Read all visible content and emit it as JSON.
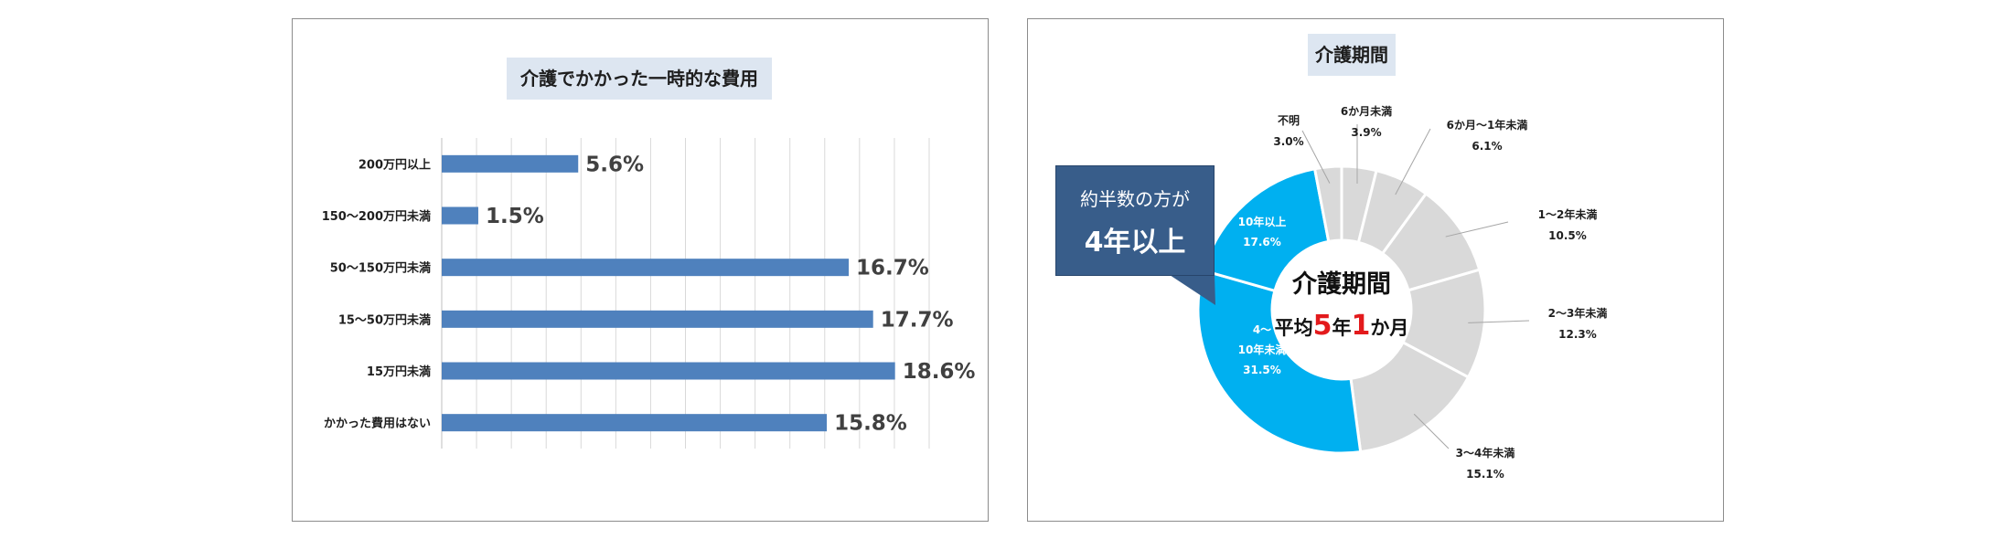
{
  "chart_data": [
    {
      "type": "bar",
      "orientation": "horizontal",
      "title": "介護でかかった一時的な費用",
      "categories": [
        "200万円以上",
        "150～200万円未満",
        "50～150万円未満",
        "15～50万円未満",
        "15万円未満",
        "かかった費用はない"
      ],
      "values": [
        5.6,
        1.5,
        16.7,
        17.7,
        18.6,
        15.8
      ],
      "value_labels": [
        "5.6%",
        "1.5%",
        "16.7%",
        "17.7%",
        "18.6%",
        "15.8%"
      ],
      "xlim": [
        0,
        20
      ],
      "grid": true,
      "bar_color": "#4f81bd"
    },
    {
      "type": "pie",
      "style": "donut",
      "title": "介護期間",
      "segments": [
        {
          "label": "6か月未満",
          "value": 3.9,
          "value_label": "3.9%",
          "color": "#d9d9d9"
        },
        {
          "label": "6か月～1年未満",
          "value": 6.1,
          "value_label": "6.1%",
          "color": "#d9d9d9"
        },
        {
          "label": "1～2年未満",
          "value": 10.5,
          "value_label": "10.5%",
          "color": "#d9d9d9"
        },
        {
          "label": "2～3年未満",
          "value": 12.3,
          "value_label": "12.3%",
          "color": "#d9d9d9"
        },
        {
          "label": "3～4年未満",
          "value": 15.1,
          "value_label": "15.1%",
          "color": "#d9d9d9"
        },
        {
          "label": "4～10年未満",
          "label_lines": [
            "4～",
            "10年未満"
          ],
          "value": 31.5,
          "value_label": "31.5%",
          "color": "#00b0f0"
        },
        {
          "label": "10年以上",
          "value": 17.6,
          "value_label": "17.6%",
          "color": "#00b0f0"
        },
        {
          "label": "不明",
          "value": 3.0,
          "value_label": "3.0%",
          "color": "#d9d9d9"
        }
      ],
      "center": {
        "title": "介護期間",
        "avg_prefix": "平均",
        "avg_years": "5",
        "avg_mid": "年",
        "avg_months": "1",
        "avg_suffix": "か月"
      },
      "callout": {
        "line1": "約半数の方が",
        "line2": "4年以上",
        "color": "#385d8a"
      }
    }
  ]
}
